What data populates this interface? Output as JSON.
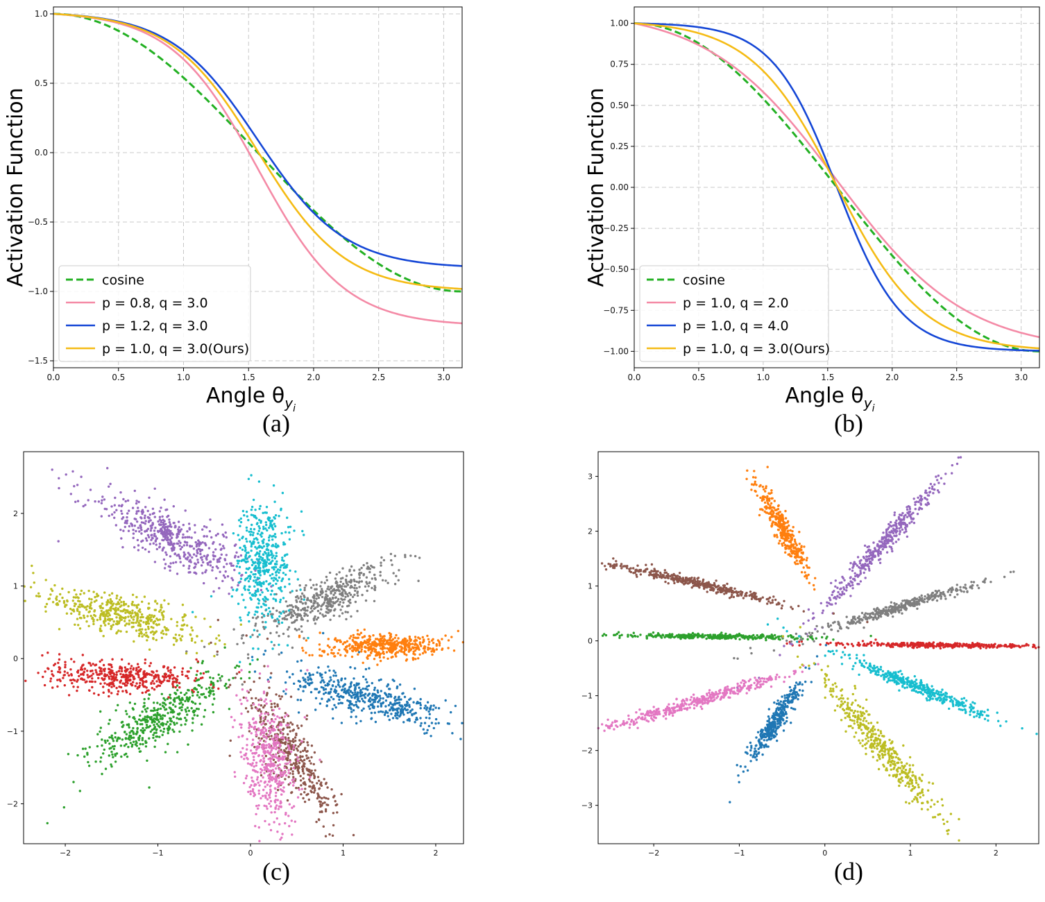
{
  "chart_data": [
    {
      "id": "a",
      "type": "line",
      "caption": "(a)",
      "xlabel": "Angle θ",
      "xlabel_subscript": "y",
      "xlabel_subsubscript": "i",
      "ylabel": "Activation Function",
      "xlim": [
        0,
        3.1416
      ],
      "ylim": [
        -1.55,
        1.05
      ],
      "xticks": [
        0.0,
        0.5,
        1.0,
        1.5,
        2.0,
        2.5,
        3.0
      ],
      "xtick_labels": [
        "0.0",
        "0.5",
        "1.0",
        "1.5",
        "2.0",
        "2.5",
        "3.0"
      ],
      "yticks": [
        1.0,
        0.5,
        0.0,
        -0.5,
        -1.0,
        -1.5
      ],
      "ytick_labels": [
        "1.0",
        "0.5",
        "0.0",
        "−0.5",
        "−1.0",
        "−1.5"
      ],
      "grid": true,
      "legend_position": "lower-left",
      "series": [
        {
          "name": "cosine",
          "color": "#22b022",
          "dash": true,
          "p": null,
          "q": null
        },
        {
          "name": "p = 0.8, q = 3.0",
          "color": "#f48aa6",
          "dash": false,
          "p": 0.8,
          "q": 3.0
        },
        {
          "name": "p = 1.2, q = 3.0",
          "color": "#1446d6",
          "dash": false,
          "p": 1.2,
          "q": 3.0
        },
        {
          "name": "p = 1.0, q = 3.0(Ours)",
          "color": "#f5bb14",
          "dash": false,
          "p": 1.0,
          "q": 3.0
        }
      ]
    },
    {
      "id": "b",
      "type": "line",
      "caption": "(b)",
      "xlabel": "Angle θ",
      "xlabel_subscript": "y",
      "xlabel_subsubscript": "i",
      "ylabel": "Activation Function",
      "xlim": [
        0,
        3.1416
      ],
      "ylim": [
        -1.1,
        1.1
      ],
      "xticks": [
        0.0,
        0.5,
        1.0,
        1.5,
        2.0,
        2.5,
        3.0
      ],
      "xtick_labels": [
        "0.0",
        "0.5",
        "1.0",
        "1.5",
        "2.0",
        "2.5",
        "3.0"
      ],
      "yticks": [
        1.0,
        0.75,
        0.5,
        0.25,
        0.0,
        -0.25,
        -0.5,
        -0.75,
        -1.0
      ],
      "ytick_labels": [
        "1.00",
        "0.75",
        "0.50",
        "0.25",
        "0.00",
        "−0.25",
        "−0.50",
        "−0.75",
        "−1.00"
      ],
      "grid": true,
      "legend_position": "lower-left",
      "series": [
        {
          "name": "cosine",
          "color": "#22b022",
          "dash": true,
          "p": null,
          "q": null
        },
        {
          "name": "p = 1.0, q = 2.0",
          "color": "#f48aa6",
          "dash": false,
          "p": 1.0,
          "q": 2.0
        },
        {
          "name": "p = 1.0, q = 4.0",
          "color": "#1446d6",
          "dash": false,
          "p": 1.0,
          "q": 4.0
        },
        {
          "name": "p = 1.0, q = 3.0(Ours)",
          "color": "#f5bb14",
          "dash": false,
          "p": 1.0,
          "q": 3.0
        }
      ]
    },
    {
      "id": "c",
      "type": "scatter",
      "caption": "(c)",
      "xlim": [
        -2.45,
        2.3
      ],
      "ylim": [
        -2.55,
        2.85
      ],
      "xticks": [
        -2,
        -1,
        0,
        1,
        2
      ],
      "xtick_labels": [
        "−2",
        "−1",
        "0",
        "1",
        "2"
      ],
      "yticks": [
        2,
        1,
        0,
        -1,
        -2
      ],
      "ytick_labels": [
        "2",
        "1",
        "0",
        "−1",
        "−2"
      ],
      "grid": false,
      "clusters": [
        {
          "color": "#1f77b4",
          "center": [
            1.3,
            -0.55
          ],
          "angle_deg": -20,
          "spread": [
            0.45,
            0.12
          ],
          "n": 480
        },
        {
          "color": "#ff7f0e",
          "center": [
            1.45,
            0.18
          ],
          "angle_deg": 3,
          "spread": [
            0.32,
            0.08
          ],
          "n": 460
        },
        {
          "color": "#2ca02c",
          "center": [
            -0.95,
            -0.8
          ],
          "angle_deg": 38,
          "spread": [
            0.45,
            0.14
          ],
          "n": 460
        },
        {
          "color": "#d62728",
          "center": [
            -1.35,
            -0.25
          ],
          "angle_deg": -3,
          "spread": [
            0.42,
            0.1
          ],
          "n": 440
        },
        {
          "color": "#9467bd",
          "center": [
            -0.85,
            1.65
          ],
          "angle_deg": -35,
          "spread": [
            0.45,
            0.15
          ],
          "n": 500
        },
        {
          "color": "#8c564b",
          "center": [
            0.45,
            -1.35
          ],
          "angle_deg": -65,
          "spread": [
            0.45,
            0.12
          ],
          "n": 440
        },
        {
          "color": "#e377c2",
          "center": [
            0.2,
            -1.45
          ],
          "angle_deg": -85,
          "spread": [
            0.4,
            0.13
          ],
          "n": 460
        },
        {
          "color": "#7f7f7f",
          "center": [
            0.85,
            0.85
          ],
          "angle_deg": 32,
          "spread": [
            0.4,
            0.13
          ],
          "n": 460
        },
        {
          "color": "#bcbd22",
          "center": [
            -1.35,
            0.6
          ],
          "angle_deg": -17,
          "spread": [
            0.45,
            0.13
          ],
          "n": 460
        },
        {
          "color": "#17becf",
          "center": [
            0.15,
            1.35
          ],
          "angle_deg": 90,
          "spread": [
            0.4,
            0.14
          ],
          "n": 480
        }
      ]
    },
    {
      "id": "d",
      "type": "scatter",
      "caption": "(d)",
      "xlim": [
        -2.65,
        2.5
      ],
      "ylim": [
        -3.7,
        3.45
      ],
      "xticks": [
        -2,
        -1,
        0,
        1,
        2
      ],
      "xtick_labels": [
        "−2",
        "−1",
        "0",
        "1",
        "2"
      ],
      "yticks": [
        3,
        2,
        1,
        0,
        -1,
        -2,
        -3
      ],
      "ytick_labels": [
        "3",
        "2",
        "1",
        "0",
        "−1",
        "−2",
        "−3"
      ],
      "grid": false,
      "clusters": [
        {
          "color": "#1f77b4",
          "center": [
            -0.55,
            -1.4
          ],
          "angle_deg": 68,
          "spread": [
            0.38,
            0.05
          ],
          "n": 360
        },
        {
          "color": "#ff7f0e",
          "center": [
            -0.48,
            2.0
          ],
          "angle_deg": -70,
          "spread": [
            0.4,
            0.05
          ],
          "n": 360
        },
        {
          "color": "#2ca02c",
          "center": [
            -1.2,
            0.08
          ],
          "angle_deg": -1,
          "spread": [
            0.55,
            0.02
          ],
          "n": 380
        },
        {
          "color": "#d62728",
          "center": [
            1.4,
            -0.08
          ],
          "angle_deg": -1,
          "spread": [
            0.55,
            0.02
          ],
          "n": 380
        },
        {
          "color": "#9467bd",
          "center": [
            0.7,
            1.8
          ],
          "angle_deg": 60,
          "spread": [
            0.65,
            0.06
          ],
          "n": 420
        },
        {
          "color": "#8c564b",
          "center": [
            -1.5,
            1.05
          ],
          "angle_deg": -20,
          "spread": [
            0.55,
            0.04
          ],
          "n": 400
        },
        {
          "color": "#e377c2",
          "center": [
            -1.5,
            -1.1
          ],
          "angle_deg": 25,
          "spread": [
            0.55,
            0.05
          ],
          "n": 400
        },
        {
          "color": "#7f7f7f",
          "center": [
            0.95,
            0.65
          ],
          "angle_deg": 25,
          "spread": [
            0.55,
            0.04
          ],
          "n": 380
        },
        {
          "color": "#bcbd22",
          "center": [
            0.7,
            -2.0
          ],
          "angle_deg": -62,
          "spread": [
            0.7,
            0.08
          ],
          "n": 440
        },
        {
          "color": "#17becf",
          "center": [
            1.1,
            -0.85
          ],
          "angle_deg": -33,
          "spread": [
            0.5,
            0.05
          ],
          "n": 400
        }
      ]
    }
  ]
}
